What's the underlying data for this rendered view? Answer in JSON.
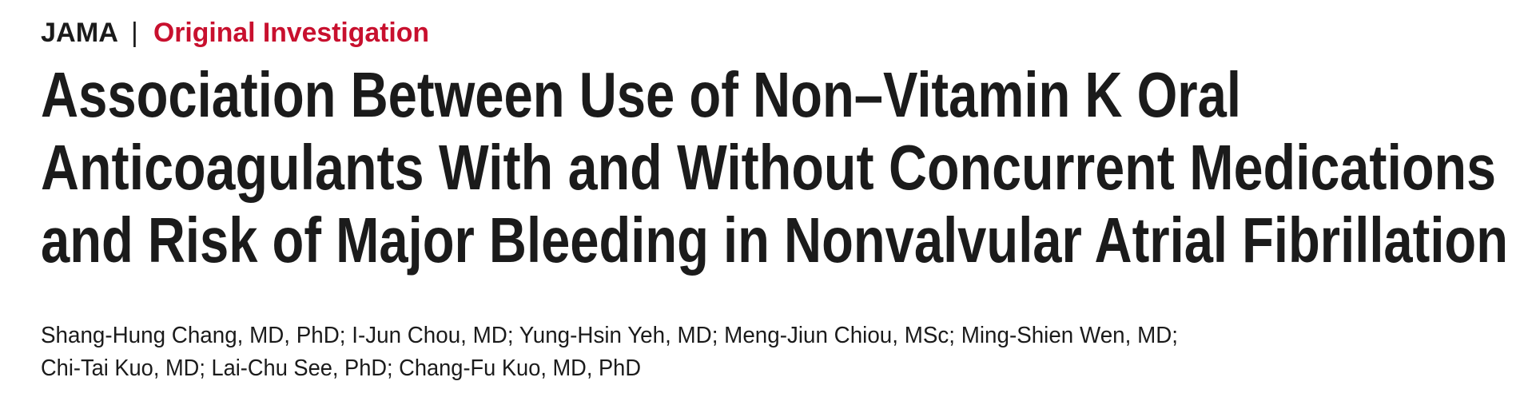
{
  "header": {
    "journal": "JAMA",
    "separator": "|",
    "section": "Original Investigation"
  },
  "title_lines": [
    "Association Between Use of Non–Vitamin K Oral",
    "Anticoagulants With and Without Concurrent Medications",
    "and Risk of Major Bleeding in Nonvalvular Atrial Fibrillation"
  ],
  "author_lines": [
    "Shang-Hung Chang, MD, PhD; I-Jun Chou, MD; Yung-Hsin Yeh, MD; Meng-Jiun Chiou, MSc; Ming-Shien Wen, MD;",
    "Chi-Tai Kuo, MD; Lai-Chu See, PhD; Chang-Fu Kuo, MD, PhD"
  ]
}
